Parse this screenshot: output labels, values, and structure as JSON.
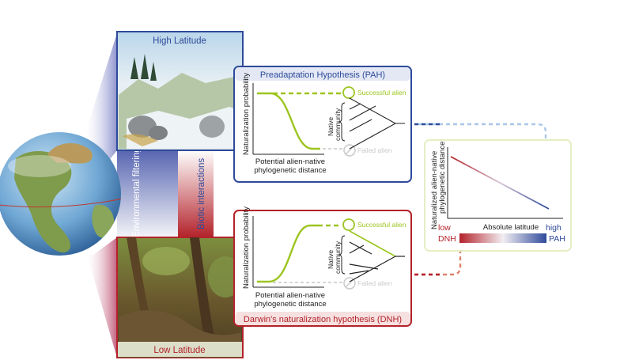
{
  "panels": {
    "high_latitude": {
      "title": "High Latitude"
    },
    "low_latitude": {
      "title": "Low Latitude"
    }
  },
  "side_labels": {
    "environmental_filtering": "Environmental filtering",
    "biotic_interactions": "Biotic interactions"
  },
  "pah": {
    "title": "Preadaptation Hypothesis (PAH)",
    "ylabel": "Naturalization probability",
    "xlabel_line1": "Potential alien-native",
    "xlabel_line2": "phylogenetic distance",
    "successful": "Successful alien",
    "failed": "Failed alien",
    "community_line1": "Native",
    "community_line2": "community"
  },
  "dnh": {
    "title": "Darwin's naturalization hypothesis (DNH)",
    "ylabel": "Naturalization probability",
    "xlabel_line1": "Potential alien-native",
    "xlabel_line2": "phylogenetic distance",
    "successful": "Successful alien",
    "failed": "Failed alien",
    "community_line1": "Native",
    "community_line2": "community"
  },
  "summary": {
    "ylabel_line1": "Naturalized alien-native",
    "ylabel_line2": "phylogenetic distance",
    "xlabel": "Absolute latitude",
    "low": "low",
    "high": "high",
    "dnh": "DNH",
    "pah": "PAH"
  },
  "colors": {
    "pah_blue": "#2e4a9a",
    "dnh_red": "#b3222a",
    "curve_green": "#9cc520",
    "failed_gray": "#c9c9c9"
  }
}
